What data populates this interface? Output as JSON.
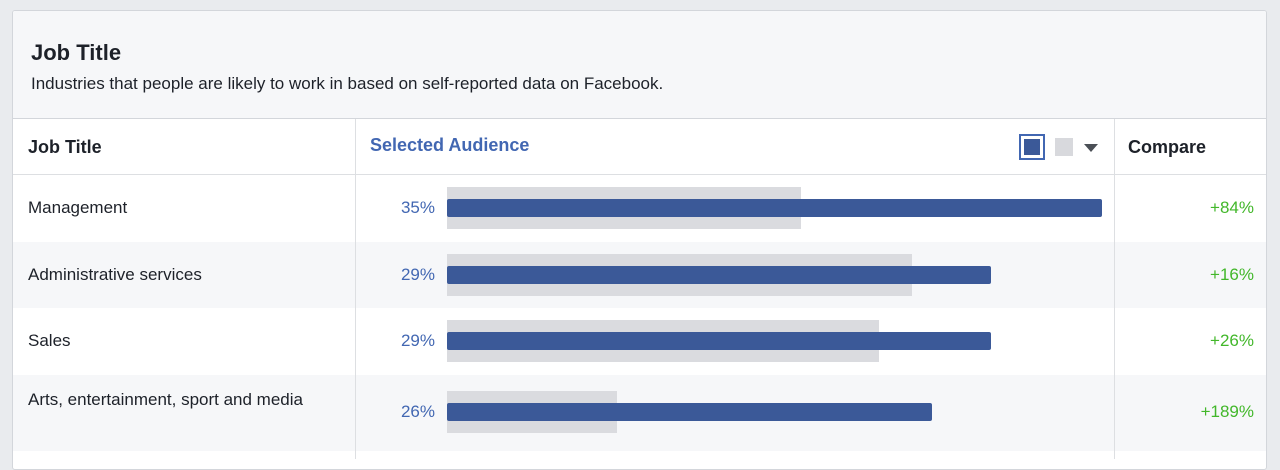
{
  "card": {
    "title": "Job Title",
    "subtitle": "Industries that people are likely to work in based on self-reported data on Facebook."
  },
  "table": {
    "col_jobtitle": "Job Title",
    "col_selected": "Selected Audience",
    "col_compare": "Compare",
    "legend": {
      "selected_color": "#3b5998",
      "compare_color": "#d8d9dd",
      "dropdown_icon": "caret-down-icon"
    },
    "rows": [
      {
        "label": "Management",
        "pct": "35%",
        "compare": "+84%",
        "selected_fraction": 1.0,
        "compare_fraction": 0.54
      },
      {
        "label": "Administrative services",
        "pct": "29%",
        "compare": "+16%",
        "selected_fraction": 0.83,
        "compare_fraction": 0.71
      },
      {
        "label": "Sales",
        "pct": "29%",
        "compare": "+26%",
        "selected_fraction": 0.83,
        "compare_fraction": 0.66
      },
      {
        "label": "Arts, entertainment, sport and media",
        "pct": "26%",
        "compare": "+189%",
        "selected_fraction": 0.74,
        "compare_fraction": 0.26
      }
    ]
  },
  "colors": {
    "accent": "#4267b2",
    "bar_selected": "#3b5998",
    "bar_compare": "#dadbdf",
    "positive": "#42b72a"
  }
}
